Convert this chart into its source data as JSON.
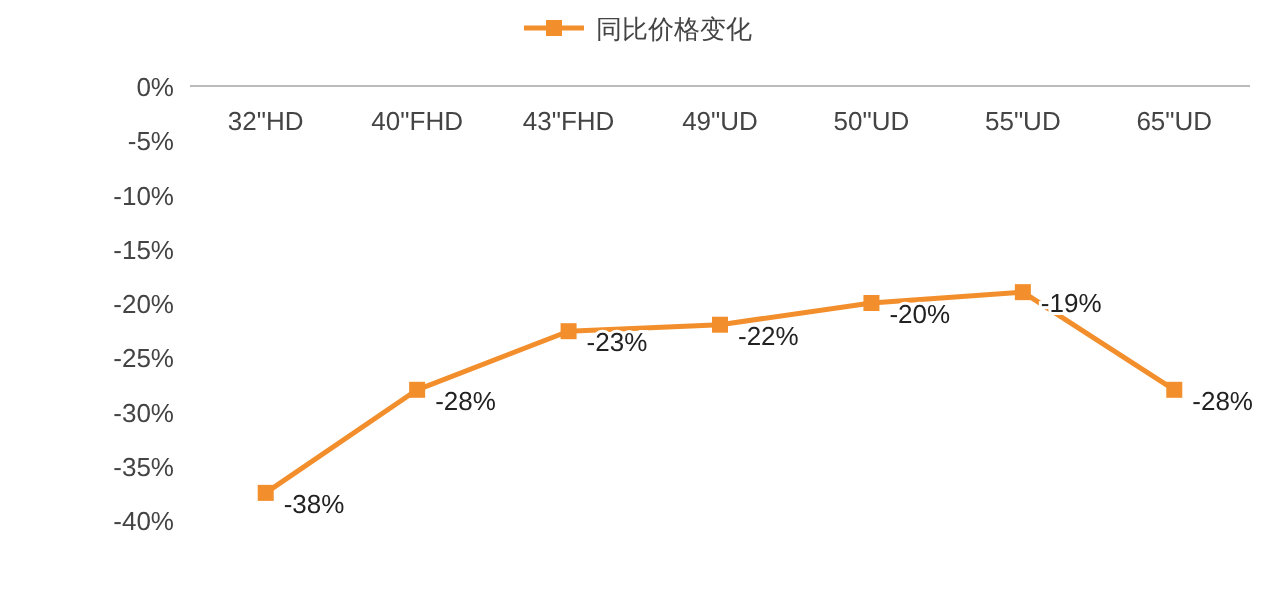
{
  "chart_data": {
    "type": "line",
    "categories": [
      "32\"HD",
      "40\"FHD",
      "43\"FHD",
      "49\"UD",
      "50\"UD",
      "55\"UD",
      "65\"UD"
    ],
    "series": [
      {
        "name": "同比价格变化",
        "color": "#f28e2b",
        "values": [
          -37.5,
          -28,
          -22.6,
          -22,
          -20,
          -19,
          -28
        ],
        "value_labels": [
          "-38%",
          "-28%",
          "-23%",
          "-22%",
          "-20%",
          "-19%",
          "-28%"
        ]
      }
    ],
    "ylim": [
      -40,
      0
    ],
    "yticks": [
      {
        "value": 0,
        "label": "0%"
      },
      {
        "value": -5,
        "label": "-5%"
      },
      {
        "value": -10,
        "label": "-10%"
      },
      {
        "value": -15,
        "label": "-15%"
      },
      {
        "value": -20,
        "label": "-20%"
      },
      {
        "value": -25,
        "label": "-25%"
      },
      {
        "value": -30,
        "label": "-30%"
      },
      {
        "value": -35,
        "label": "-35%"
      },
      {
        "value": -40,
        "label": "-40%"
      }
    ],
    "grid": false,
    "legend": "top",
    "marker": "square",
    "line_style": "solid"
  }
}
